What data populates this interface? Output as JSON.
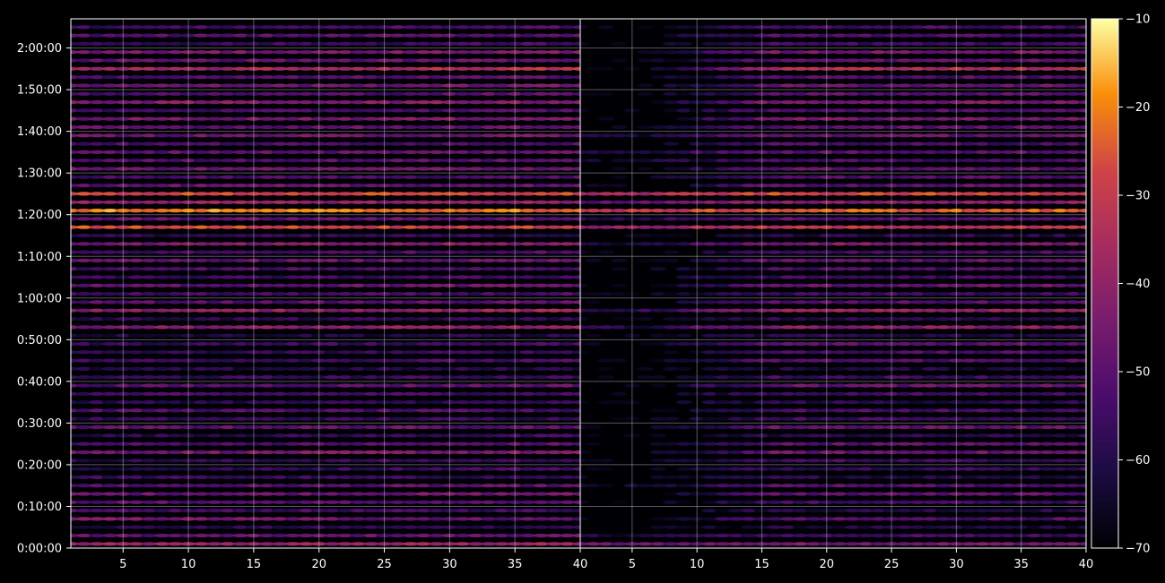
{
  "chart_data": {
    "type": "heatmap",
    "title": "",
    "xlabel": "",
    "ylabel": "",
    "panels": [
      {
        "xlim": [
          1,
          40
        ]
      },
      {
        "xlim": [
          1,
          40
        ]
      }
    ],
    "x_tick_labels": [
      "5",
      "10",
      "15",
      "20",
      "25",
      "30",
      "35",
      "40"
    ],
    "x_tick_values": [
      5,
      10,
      15,
      20,
      25,
      30,
      35,
      40
    ],
    "y_tick_labels": [
      "0:00:00",
      "0:10:00",
      "0:20:00",
      "0:30:00",
      "0:40:00",
      "0:50:00",
      "1:00:00",
      "1:10:00",
      "1:20:00",
      "1:30:00",
      "1:40:00",
      "1:50:00",
      "2:00:00"
    ],
    "y_tick_minutes": [
      0,
      10,
      20,
      30,
      40,
      50,
      60,
      70,
      80,
      90,
      100,
      110,
      120
    ],
    "ylim_minutes": [
      0,
      127
    ],
    "grid": true,
    "colormap": "inferno",
    "colorbar": {
      "range": [
        -70,
        -10
      ],
      "tick_values": [
        -10,
        -20,
        -30,
        -40,
        -50,
        -60,
        -70
      ],
      "tick_labels": [
        "−10",
        "−20",
        "−30",
        "−40",
        "−50",
        "−60",
        "−70"
      ]
    },
    "rows_start": 0,
    "rows_step": 2,
    "rows": [
      {
        "lvl": [
          -40,
          -38,
          -48,
          -45
        ]
      },
      {
        "lvl": [
          -50,
          -48,
          -62,
          -55
        ]
      },
      {
        "lvl": [
          -60,
          -58,
          -70,
          -62
        ]
      },
      {
        "lvl": [
          -44,
          -50,
          -70,
          -52
        ]
      },
      {
        "lvl": [
          -55,
          -55,
          -70,
          -60
        ]
      },
      {
        "lvl": [
          -50,
          -52,
          -70,
          -55
        ]
      },
      {
        "lvl": [
          -48,
          -46,
          -70,
          -50
        ]
      },
      {
        "lvl": [
          -52,
          -50,
          -66,
          -52
        ]
      },
      {
        "lvl": [
          -56,
          -58,
          -70,
          -60
        ]
      },
      {
        "lvl": [
          -62,
          -52,
          -70,
          -56
        ]
      },
      {
        "lvl": [
          -60,
          -55,
          -70,
          -55
        ]
      },
      {
        "lvl": [
          -46,
          -44,
          -70,
          -48
        ]
      },
      {
        "lvl": [
          -54,
          -50,
          -70,
          -50
        ]
      },
      {
        "lvl": [
          -60,
          -56,
          -70,
          -60
        ]
      },
      {
        "lvl": [
          -50,
          -48,
          -70,
          -48
        ]
      },
      {
        "lvl": [
          -58,
          -56,
          -70,
          -55
        ]
      },
      {
        "lvl": [
          -52,
          -54,
          -70,
          -54
        ]
      },
      {
        "lvl": [
          -60,
          -58,
          -70,
          -60
        ]
      },
      {
        "lvl": [
          -55,
          -54,
          -70,
          -55
        ]
      },
      {
        "lvl": [
          -52,
          -48,
          -70,
          -48
        ]
      },
      {
        "lvl": [
          -58,
          -55,
          -70,
          -55
        ]
      },
      {
        "lvl": [
          -62,
          -60,
          -70,
          -62
        ]
      },
      {
        "lvl": [
          -56,
          -54,
          -70,
          -52
        ]
      },
      {
        "lvl": [
          -60,
          -56,
          -70,
          -54
        ]
      },
      {
        "lvl": [
          -58,
          -54,
          -70,
          -50
        ]
      },
      {
        "lvl": [
          -62,
          -60,
          -70,
          -60
        ]
      },
      {
        "lvl": [
          -44,
          -40,
          -60,
          -42
        ]
      },
      {
        "lvl": [
          -60,
          -58,
          -70,
          -60
        ]
      },
      {
        "lvl": [
          -42,
          -38,
          -58,
          -40
        ]
      },
      {
        "lvl": [
          -52,
          -50,
          -70,
          -52
        ]
      },
      {
        "lvl": [
          -56,
          -54,
          -70,
          -56
        ]
      },
      {
        "lvl": [
          -50,
          -46,
          -70,
          -48
        ]
      },
      {
        "lvl": [
          -58,
          -54,
          -70,
          -56
        ]
      },
      {
        "lvl": [
          -54,
          -52,
          -70,
          -54
        ]
      },
      {
        "lvl": [
          -50,
          -48,
          -70,
          -50
        ]
      },
      {
        "lvl": [
          -56,
          -52,
          -70,
          -54
        ]
      },
      {
        "lvl": [
          -46,
          -42,
          -62,
          -44
        ]
      },
      {
        "lvl": [
          -60,
          -58,
          -70,
          -60
        ]
      },
      {
        "lvl": [
          -26,
          -30,
          -40,
          -32
        ]
      },
      {
        "lvl": [
          -50,
          -48,
          -60,
          -50
        ]
      },
      {
        "lvl": [
          -20,
          -22,
          -32,
          -24
        ]
      },
      {
        "lvl": [
          -40,
          -40,
          -50,
          -42
        ]
      },
      {
        "lvl": [
          -28,
          -28,
          -36,
          -28
        ]
      },
      {
        "lvl": [
          -50,
          -48,
          -70,
          -50
        ]
      },
      {
        "lvl": [
          -54,
          -52,
          -70,
          -52
        ]
      },
      {
        "lvl": [
          -48,
          -46,
          -70,
          -50
        ]
      },
      {
        "lvl": [
          -52,
          -50,
          -64,
          -54
        ]
      },
      {
        "lvl": [
          -50,
          -48,
          -60,
          -50
        ]
      },
      {
        "lvl": [
          -54,
          -52,
          -70,
          -54
        ]
      },
      {
        "lvl": [
          -48,
          -46,
          -62,
          -48
        ]
      },
      {
        "lvl": [
          -50,
          -48,
          -70,
          -50
        ]
      },
      {
        "lvl": [
          -46,
          -44,
          -70,
          -46
        ]
      },
      {
        "lvl": [
          -56,
          -52,
          -70,
          -52
        ]
      },
      {
        "lvl": [
          -44,
          -42,
          -70,
          -44
        ]
      },
      {
        "lvl": [
          -54,
          -50,
          -70,
          -50
        ]
      },
      {
        "lvl": [
          -48,
          -46,
          -70,
          -48
        ]
      },
      {
        "lvl": [
          -54,
          -50,
          -70,
          -52
        ]
      },
      {
        "lvl": [
          -40,
          -32,
          -70,
          -34
        ]
      },
      {
        "lvl": [
          -50,
          -48,
          -70,
          -50
        ]
      },
      {
        "lvl": [
          -46,
          -44,
          -70,
          -46
        ]
      },
      {
        "lvl": [
          -58,
          -54,
          -70,
          -56
        ]
      },
      {
        "lvl": [
          -52,
          -50,
          -70,
          -52
        ]
      },
      {
        "lvl": [
          -56,
          -52,
          -70,
          -54
        ]
      }
    ]
  }
}
